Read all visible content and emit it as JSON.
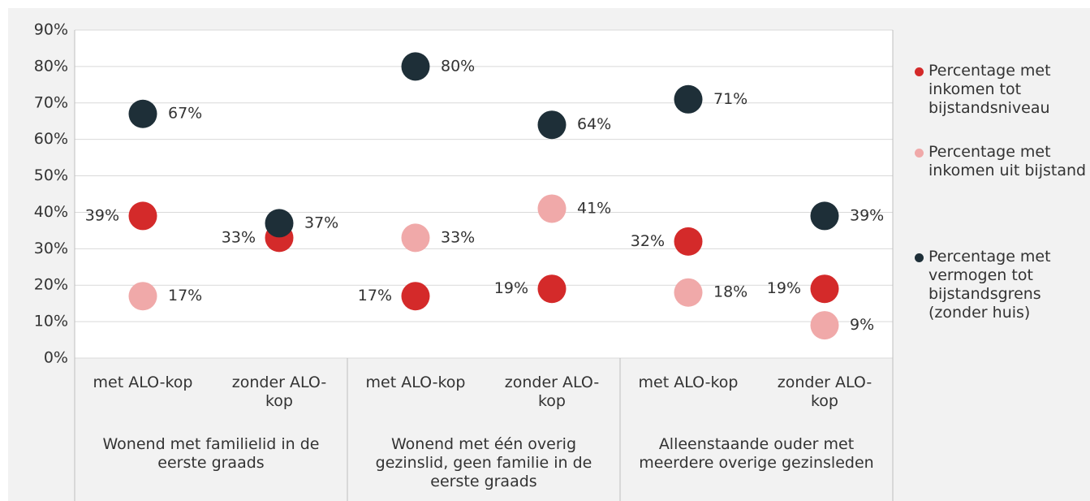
{
  "chart_data": {
    "type": "dot",
    "categories": [
      "met ALO-kop",
      "zonder ALO-kop",
      "met ALO-kop",
      "zonder ALO-kop",
      "met ALO-kop",
      "zonder ALO-kop"
    ],
    "groups": [
      "Wonend met familielid in de eerste graads",
      "Wonend met één overig gezinslid, geen familie in de eerste graads",
      "Alleenstaande ouder met meerdere overige gezinsleden"
    ],
    "series": [
      {
        "name": "Percentage met inkomen tot bijstandsniveau",
        "color": "#d42a2a",
        "values": [
          39,
          33,
          17,
          19,
          32,
          19
        ],
        "value_labels": [
          "39%",
          "33%",
          "17%",
          "19%",
          "32%",
          "19%"
        ]
      },
      {
        "name": "Percentage met inkomen uit bijstand",
        "color": "#f0a9a9",
        "values": [
          17,
          null,
          33,
          41,
          18,
          9
        ],
        "value_labels": [
          "17%",
          null,
          "33%",
          "41%",
          "18%",
          "9%"
        ]
      },
      {
        "name": "Percentage met vermogen tot bijstandsgrens (zonder huis)",
        "color": "#1e2f38",
        "values": [
          67,
          37,
          80,
          64,
          71,
          39
        ],
        "value_labels": [
          "67%",
          "37%",
          "80%",
          "64%",
          "71%",
          "39%"
        ]
      }
    ],
    "ylim": [
      0,
      90
    ],
    "yticks": [
      {
        "value": 0,
        "label": "0%"
      },
      {
        "value": 10,
        "label": "10%"
      },
      {
        "value": 20,
        "label": "20%"
      },
      {
        "value": 30,
        "label": "30%"
      },
      {
        "value": 40,
        "label": "40%"
      },
      {
        "value": 50,
        "label": "50%"
      },
      {
        "value": 60,
        "label": "60%"
      },
      {
        "value": 70,
        "label": "70%"
      },
      {
        "value": 80,
        "label": "80%"
      },
      {
        "value": 90,
        "label": "90%"
      }
    ],
    "grid": true,
    "legend": "right"
  }
}
